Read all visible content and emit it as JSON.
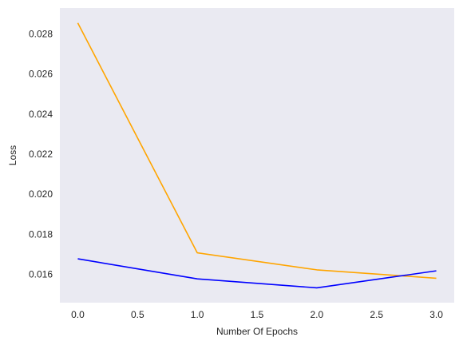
{
  "chart_data": {
    "type": "line",
    "title": "",
    "xlabel": "Number Of Epochs",
    "ylabel": "Loss",
    "xlim": [
      -0.15,
      3.15
    ],
    "ylim": [
      0.01458,
      0.0293
    ],
    "x_ticks": [
      0.0,
      0.5,
      1.0,
      1.5,
      2.0,
      2.5,
      3.0
    ],
    "x_tick_labels": [
      "0.0",
      "0.5",
      "1.0",
      "1.5",
      "2.0",
      "2.5",
      "3.0"
    ],
    "y_ticks": [
      0.016,
      0.018,
      0.02,
      0.022,
      0.024,
      0.026,
      0.028
    ],
    "y_tick_labels": [
      "0.016",
      "0.018",
      "0.020",
      "0.022",
      "0.024",
      "0.026",
      "0.028"
    ],
    "grid": false,
    "plot_background": "#eaeaf2",
    "series": [
      {
        "name": "orange-series",
        "color": "#ffa500",
        "x": [
          0,
          1,
          2,
          3
        ],
        "y": [
          0.02855,
          0.01707,
          0.01622,
          0.0158
        ]
      },
      {
        "name": "blue-series",
        "color": "#0000ff",
        "x": [
          0,
          1,
          2,
          3
        ],
        "y": [
          0.01677,
          0.01577,
          0.01532,
          0.01617
        ]
      }
    ]
  }
}
